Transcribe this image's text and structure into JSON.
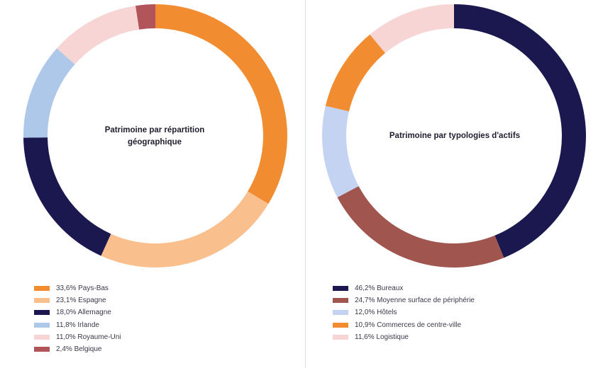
{
  "chart_data": [
    {
      "type": "pie",
      "donut": true,
      "title": "Patrimoine par répartition géographique",
      "legend_position": "bottom-left",
      "slices": [
        {
          "label": "Pays-Bas",
          "value": 33.6,
          "legend": "33,6% Pays-Bas",
          "color": "#f28c30"
        },
        {
          "label": "Espagne",
          "value": 23.1,
          "legend": "23,1% Espagne",
          "color": "#f9c08e"
        },
        {
          "label": "Allemagne",
          "value": 18.0,
          "legend": "18,0% Allemagne",
          "color": "#1b174f"
        },
        {
          "label": "Irlande",
          "value": 11.8,
          "legend": "11,8% Irlande",
          "color": "#adc8e8"
        },
        {
          "label": "Royaume-Uni",
          "value": 11.0,
          "legend": "11,0% Royaume-Uni",
          "color": "#f7d5d5"
        },
        {
          "label": "Belgique",
          "value": 2.4,
          "legend": "2,4% Belgique",
          "color": "#b2555a"
        }
      ]
    },
    {
      "type": "pie",
      "donut": true,
      "title": "Patrimoine par typologies d'actifs",
      "legend_position": "bottom-left",
      "slices": [
        {
          "label": "Bureaux",
          "value": 46.2,
          "legend": "46,2% Bureaux",
          "color": "#1b174f"
        },
        {
          "label": "Moyenne surface de périphérie",
          "value": 24.7,
          "legend": "24,7% Moyenne surface de périphérie",
          "color": "#a0554f"
        },
        {
          "label": "Hôtels",
          "value": 12.0,
          "legend": "12,0% Hôtels",
          "color": "#c5d3f2"
        },
        {
          "label": "Commerces de centre-ville",
          "value": 10.9,
          "legend": "10,9% Commerces de centre-ville",
          "color": "#f28c30"
        },
        {
          "label": "Logistique",
          "value": 11.6,
          "legend": "11,6% Logistique",
          "color": "#f7d5d5"
        }
      ]
    }
  ]
}
